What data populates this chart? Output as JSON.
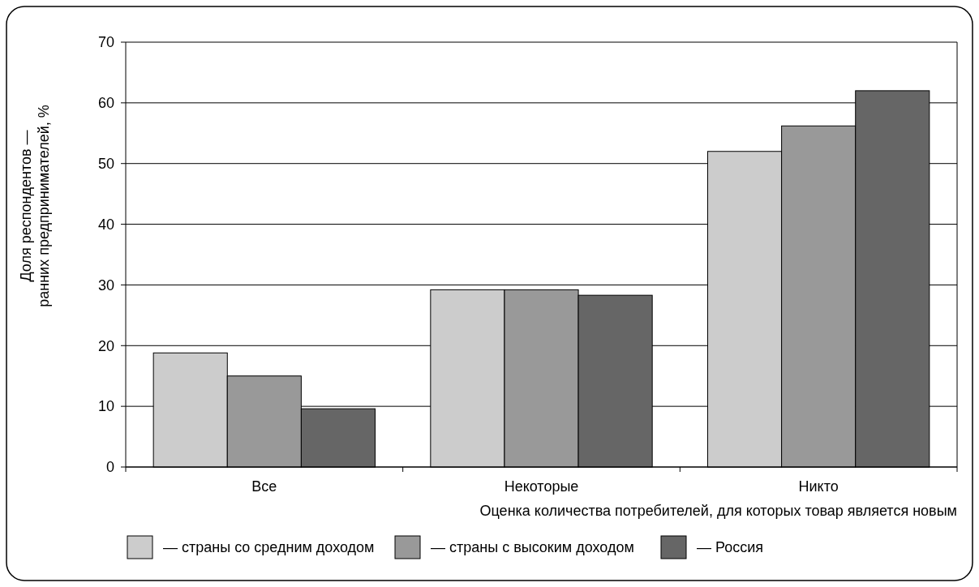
{
  "chart_data": {
    "type": "bar",
    "xlabel": "Оценка количества потребителей, для которых товар является новым",
    "ylabel": "Доля респондентов —\nранних предпринимателей, %",
    "categories": [
      "Все",
      "Некоторые",
      "Никто"
    ],
    "series": [
      {
        "name": "— страны со средним доходом",
        "color": "#cccccc",
        "values": [
          18.8,
          29.2,
          52
        ]
      },
      {
        "name": "— страны с высоким доходом",
        "color": "#999999",
        "values": [
          15,
          29.2,
          56.2
        ]
      },
      {
        "name": "— Россия",
        "color": "#666666",
        "values": [
          9.6,
          28.3,
          62
        ]
      }
    ],
    "ylim": [
      0,
      70
    ],
    "yticks": [
      0,
      10,
      20,
      30,
      40,
      50,
      60,
      70
    ],
    "grid": "y",
    "legend": "bottom"
  }
}
